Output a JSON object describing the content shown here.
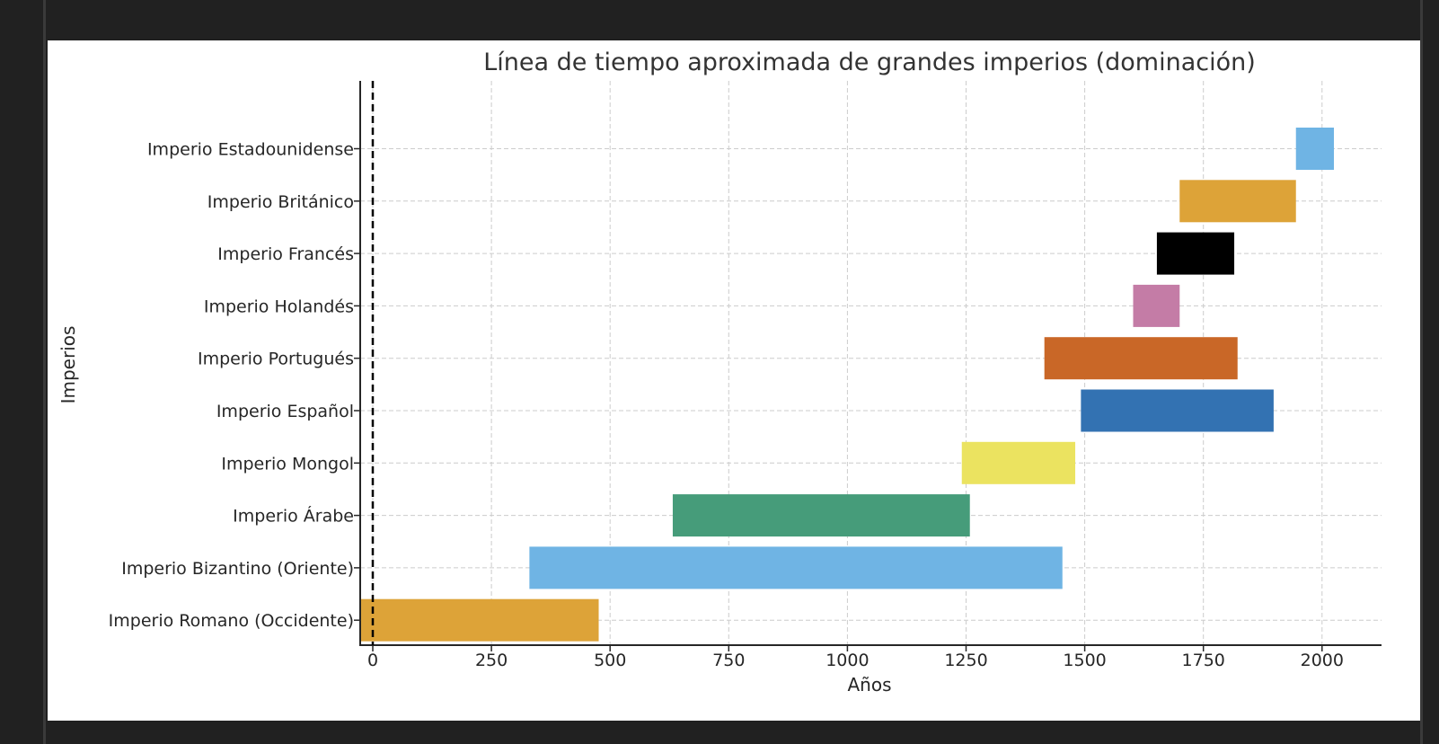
{
  "chart_data": {
    "type": "bar",
    "orientation": "horizontal-timeline",
    "title": "Línea de tiempo aproximada de grandes imperios (dominación)",
    "xlabel": "Años",
    "ylabel": "Imperios",
    "xlim": [
      -25,
      2125
    ],
    "xticks": [
      0,
      250,
      500,
      750,
      1000,
      1250,
      1500,
      1750,
      2000
    ],
    "grid": true,
    "reference_line": {
      "x": 0,
      "style": "dashed",
      "color": "#000000"
    },
    "series": [
      {
        "label": "Imperio Romano (Occidente)",
        "start": -27,
        "end": 476,
        "color": "#DDA338"
      },
      {
        "label": "Imperio Bizantino (Oriente)",
        "start": 330,
        "end": 1453,
        "color": "#6FB4E4"
      },
      {
        "label": "Imperio Árabe",
        "start": 632,
        "end": 1258,
        "color": "#469C7A"
      },
      {
        "label": "Imperio Mongol",
        "start": 1241,
        "end": 1480,
        "color": "#EBE360"
      },
      {
        "label": "Imperio Español",
        "start": 1492,
        "end": 1898,
        "color": "#3372B2"
      },
      {
        "label": "Imperio Portugués",
        "start": 1415,
        "end": 1822,
        "color": "#C96727"
      },
      {
        "label": "Imperio Holandés",
        "start": 1602,
        "end": 1700,
        "color": "#C47CA6"
      },
      {
        "label": "Imperio Francés",
        "start": 1652,
        "end": 1815,
        "color": "#000000"
      },
      {
        "label": "Imperio Británico",
        "start": 1700,
        "end": 1945,
        "color": "#DDA338"
      },
      {
        "label": "Imperio Estadounidense",
        "start": 1945,
        "end": 2025,
        "color": "#6FB4E4"
      }
    ]
  }
}
